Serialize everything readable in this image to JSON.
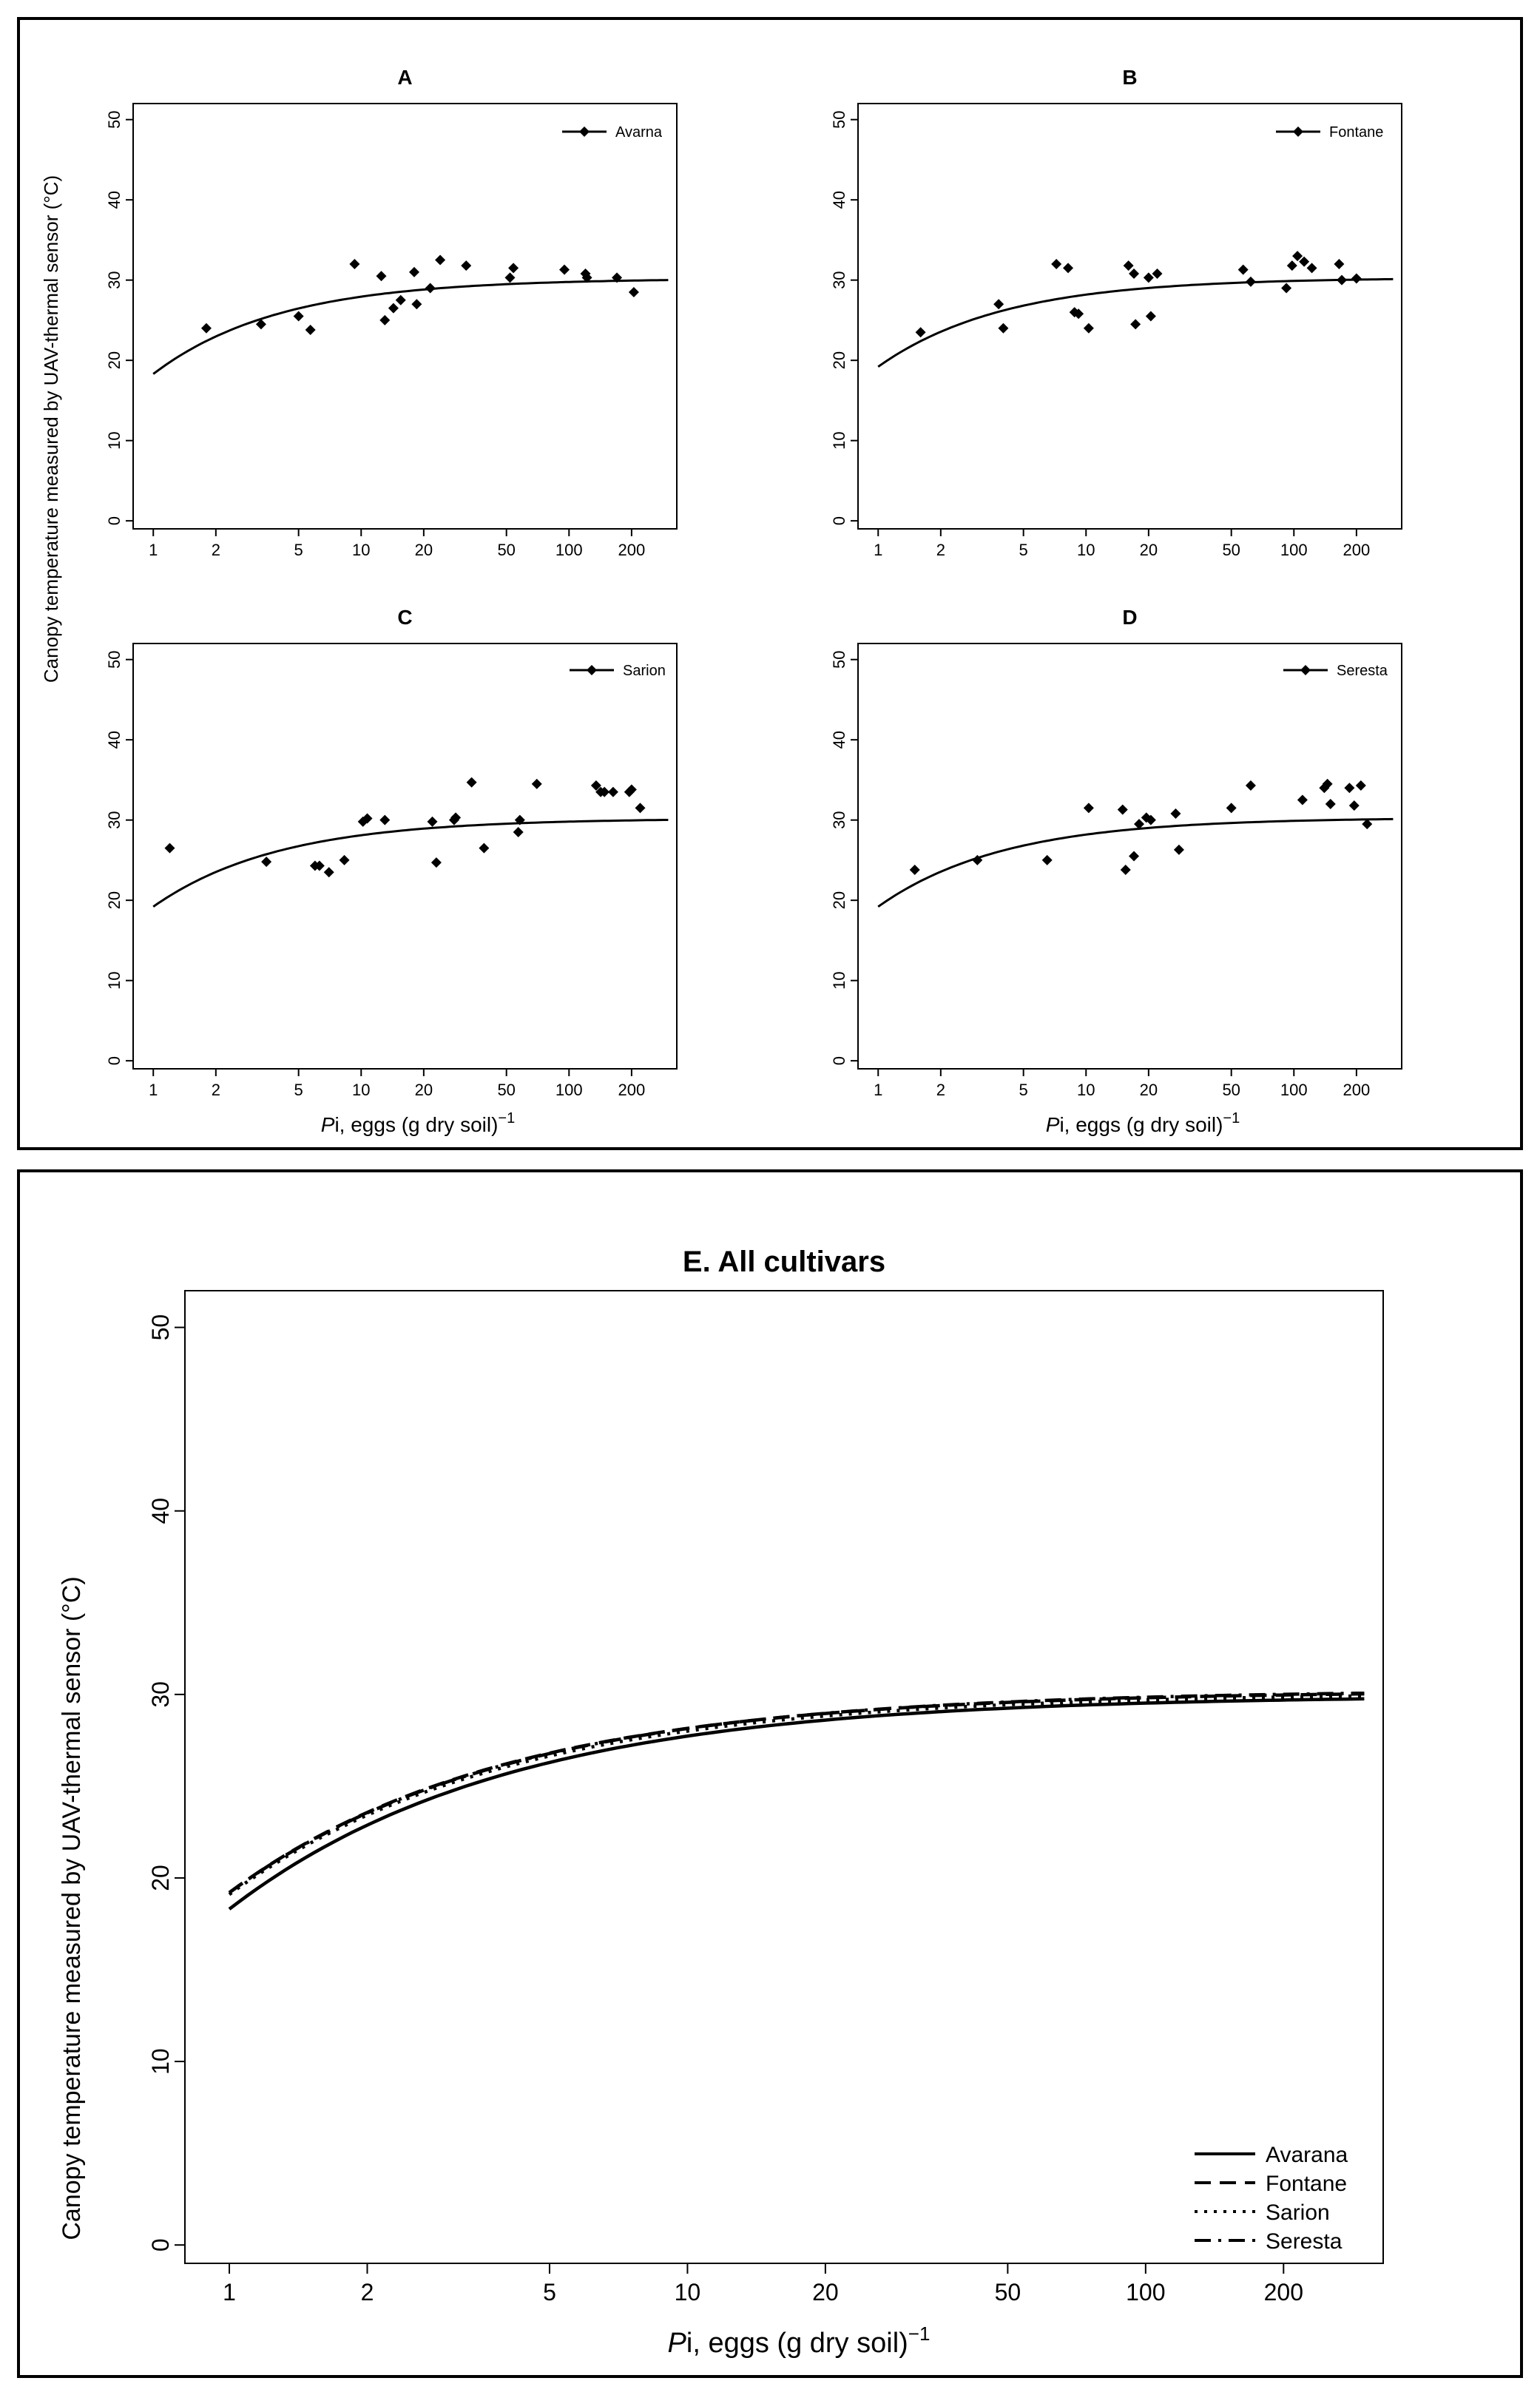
{
  "y_axis_label": "Canopy temperature measured by UAV-thermal sensor (°C)",
  "x_axis_label": {
    "italic": "P",
    "rest": "i, eggs  (g dry soil)",
    "sup": "−1"
  },
  "chart_data": [
    {
      "type": "scatter",
      "id": "A",
      "title": "A",
      "xscale": "log",
      "xlim": [
        0.8,
        330
      ],
      "ylim": [
        -1,
        52
      ],
      "xticks": [
        1,
        2,
        5,
        10,
        20,
        50,
        100,
        200
      ],
      "xtick_labels": [
        "1",
        "2",
        "5",
        "10",
        "20",
        "50",
        "100",
        "200"
      ],
      "yticks": [
        0,
        10,
        20,
        30,
        40,
        50
      ],
      "ytick_labels": [
        "0",
        "10",
        "20",
        "30",
        "40",
        "50"
      ],
      "legend": [
        "Avarna"
      ],
      "fit": {
        "ymax": 30.2,
        "y1": 18.3,
        "k": 0.72
      },
      "points": [
        [
          1.8,
          24
        ],
        [
          3.3,
          24.5
        ],
        [
          5,
          25.5
        ],
        [
          5.7,
          23.8
        ],
        [
          9.3,
          32
        ],
        [
          12.5,
          30.5
        ],
        [
          13,
          25
        ],
        [
          14.3,
          26.5
        ],
        [
          15.5,
          27.5
        ],
        [
          18,
          31
        ],
        [
          18.5,
          27
        ],
        [
          21.5,
          29
        ],
        [
          24,
          32.5
        ],
        [
          32,
          31.8
        ],
        [
          52,
          30.3
        ],
        [
          54,
          31.5
        ],
        [
          95,
          31.3
        ],
        [
          120,
          30.8
        ],
        [
          122,
          30.3
        ],
        [
          170,
          30.3
        ],
        [
          205,
          28.5
        ]
      ]
    },
    {
      "type": "scatter",
      "id": "B",
      "title": "B",
      "xscale": "log",
      "xlim": [
        0.8,
        330
      ],
      "ylim": [
        -1,
        52
      ],
      "xticks": [
        1,
        2,
        5,
        10,
        20,
        50,
        100,
        200
      ],
      "xtick_labels": [
        "1",
        "2",
        "5",
        "10",
        "20",
        "50",
        "100",
        "200"
      ],
      "yticks": [
        0,
        10,
        20,
        30,
        40,
        50
      ],
      "ytick_labels": [
        "0",
        "10",
        "20",
        "30",
        "40",
        "50"
      ],
      "legend": [
        "Fontane"
      ],
      "fit": {
        "ymax": 30.3,
        "y1": 19.2,
        "k": 0.72
      },
      "points": [
        [
          1.6,
          23.5
        ],
        [
          3.8,
          27
        ],
        [
          4,
          24
        ],
        [
          7.2,
          32
        ],
        [
          8.2,
          31.5
        ],
        [
          8.8,
          26
        ],
        [
          9.2,
          25.8
        ],
        [
          10.3,
          24
        ],
        [
          16,
          31.8
        ],
        [
          17,
          30.8
        ],
        [
          17.3,
          24.5
        ],
        [
          20,
          30.3
        ],
        [
          20.5,
          25.5
        ],
        [
          22,
          30.8
        ],
        [
          57,
          31.3
        ],
        [
          62,
          29.8
        ],
        [
          92,
          29
        ],
        [
          98,
          31.8
        ],
        [
          104,
          33
        ],
        [
          112,
          32.3
        ],
        [
          122,
          31.5
        ],
        [
          165,
          32
        ],
        [
          170,
          30
        ],
        [
          200,
          30.2
        ]
      ]
    },
    {
      "type": "scatter",
      "id": "C",
      "title": "C",
      "xscale": "log",
      "xlim": [
        0.8,
        330
      ],
      "ylim": [
        -1,
        52
      ],
      "xticks": [
        1,
        2,
        5,
        10,
        20,
        50,
        100,
        200
      ],
      "xtick_labels": [
        "1",
        "2",
        "5",
        "10",
        "20",
        "50",
        "100",
        "200"
      ],
      "yticks": [
        0,
        10,
        20,
        30,
        40,
        50
      ],
      "ytick_labels": [
        "0",
        "10",
        "20",
        "30",
        "40",
        "50"
      ],
      "legend": [
        "Sarion"
      ],
      "fit": {
        "ymax": 30.2,
        "y1": 19.2,
        "k": 0.72
      },
      "points": [
        [
          1.2,
          26.5
        ],
        [
          3.5,
          24.8
        ],
        [
          6,
          24.3
        ],
        [
          6.3,
          24.3
        ],
        [
          7,
          23.5
        ],
        [
          8.3,
          25
        ],
        [
          10.2,
          29.8
        ],
        [
          10.7,
          30.2
        ],
        [
          13,
          30
        ],
        [
          22,
          29.8
        ],
        [
          23,
          24.7
        ],
        [
          28,
          30
        ],
        [
          28.5,
          30.3
        ],
        [
          34,
          34.7
        ],
        [
          39,
          26.5
        ],
        [
          57,
          28.5
        ],
        [
          58,
          30
        ],
        [
          70,
          34.5
        ],
        [
          135,
          34.3
        ],
        [
          142,
          33.5
        ],
        [
          148,
          33.5
        ],
        [
          163,
          33.5
        ],
        [
          195,
          33.5
        ],
        [
          200,
          33.8
        ],
        [
          220,
          31.5
        ]
      ]
    },
    {
      "type": "scatter",
      "id": "D",
      "title": "D",
      "xscale": "log",
      "xlim": [
        0.8,
        330
      ],
      "ylim": [
        -1,
        52
      ],
      "xticks": [
        1,
        2,
        5,
        10,
        20,
        50,
        100,
        200
      ],
      "xtick_labels": [
        "1",
        "2",
        "5",
        "10",
        "20",
        "50",
        "100",
        "200"
      ],
      "yticks": [
        0,
        10,
        20,
        30,
        40,
        50
      ],
      "ytick_labels": [
        "0",
        "10",
        "20",
        "30",
        "40",
        "50"
      ],
      "legend": [
        "Seresta"
      ],
      "fit": {
        "ymax": 30.3,
        "y1": 19.2,
        "k": 0.72
      },
      "points": [
        [
          1.5,
          23.8
        ],
        [
          3,
          25
        ],
        [
          6.5,
          25
        ],
        [
          10.3,
          31.5
        ],
        [
          15,
          31.3
        ],
        [
          15.5,
          23.8
        ],
        [
          17,
          25.5
        ],
        [
          18,
          29.5
        ],
        [
          19.5,
          30.3
        ],
        [
          20.5,
          30
        ],
        [
          27,
          30.8
        ],
        [
          28,
          26.3
        ],
        [
          50,
          31.5
        ],
        [
          62,
          34.3
        ],
        [
          110,
          32.5
        ],
        [
          140,
          34
        ],
        [
          145,
          34.5
        ],
        [
          150,
          32
        ],
        [
          185,
          34
        ],
        [
          195,
          31.8
        ],
        [
          210,
          34.3
        ],
        [
          225,
          29.5
        ]
      ]
    },
    {
      "type": "line",
      "id": "E",
      "title": "E. All cultivars",
      "xscale": "log",
      "xlim": [
        0.8,
        330
      ],
      "ylim": [
        -1,
        52
      ],
      "xticks": [
        1,
        2,
        5,
        10,
        20,
        50,
        100,
        200
      ],
      "xtick_labels": [
        "1",
        "2",
        "5",
        "10",
        "20",
        "50",
        "100",
        "200"
      ],
      "yticks": [
        0,
        10,
        20,
        30,
        40,
        50
      ],
      "ytick_labels": [
        "0",
        "10",
        "20",
        "30",
        "40",
        "50"
      ],
      "legend_position": "bottom-right",
      "series": [
        {
          "name": "Avarana",
          "style": "solid",
          "fit": {
            "ymax": 29.95,
            "y1": 18.3,
            "k": 0.72
          }
        },
        {
          "name": "Fontane",
          "style": "dashed",
          "fit": {
            "ymax": 30.2,
            "y1": 19.2,
            "k": 0.73
          }
        },
        {
          "name": "Sarion",
          "style": "dotted",
          "fit": {
            "ymax": 30.1,
            "y1": 19.1,
            "k": 0.72
          }
        },
        {
          "name": "Seresta",
          "style": "dashdot",
          "fit": {
            "ymax": 30.25,
            "y1": 19.2,
            "k": 0.72
          }
        }
      ]
    }
  ]
}
